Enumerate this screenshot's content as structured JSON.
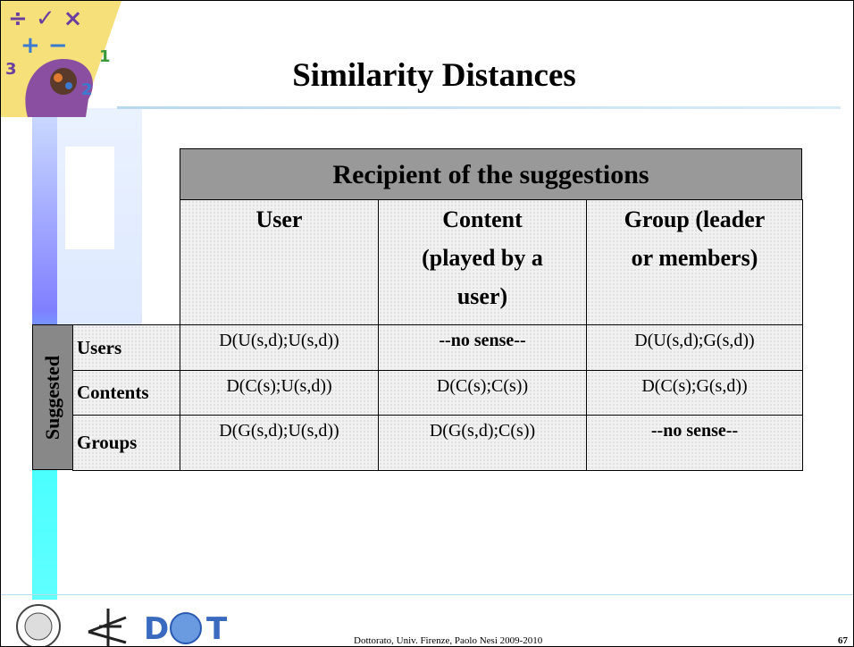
{
  "title": "Similarity Distances",
  "table": {
    "header": "Recipient of the suggestions",
    "columns": [
      "User",
      "Content (played by a user)",
      "Group (leader or members)"
    ],
    "row_group": "Suggested",
    "rows": [
      {
        "name": "Users",
        "cells": [
          "D(U(s,d);U(s,d))",
          "--no sense--",
          "D(U(s,d);G(s,d))"
        ]
      },
      {
        "name": "Contents",
        "cells": [
          "D(C(s);U(s,d))",
          "D(C(s);C(s))",
          "D(C(s);G(s,d))"
        ]
      },
      {
        "name": "Groups",
        "cells": [
          "D(G(s,d);U(s,d))",
          "D(G(s,d);C(s))",
          "--no sense--"
        ]
      }
    ]
  },
  "logo": {
    "letters": [
      "D",
      "T"
    ]
  },
  "footer": {
    "text": "Dottorato, Univ. Firenze, Paolo Nesi 2009-2010",
    "page": "67"
  }
}
